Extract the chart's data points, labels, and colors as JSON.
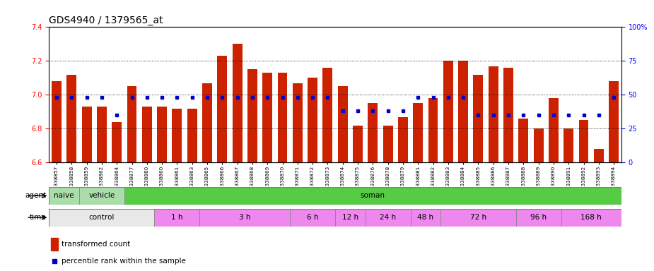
{
  "title": "GDS4940 / 1379565_at",
  "samples": [
    "GSM338857",
    "GSM338858",
    "GSM338859",
    "GSM338862",
    "GSM338864",
    "GSM338877",
    "GSM338880",
    "GSM338860",
    "GSM338861",
    "GSM338863",
    "GSM338865",
    "GSM338866",
    "GSM338867",
    "GSM338868",
    "GSM338869",
    "GSM338870",
    "GSM338871",
    "GSM338872",
    "GSM338873",
    "GSM338874",
    "GSM338875",
    "GSM338876",
    "GSM338878",
    "GSM338879",
    "GSM338881",
    "GSM338882",
    "GSM338883",
    "GSM338884",
    "GSM338885",
    "GSM338886",
    "GSM338887",
    "GSM338888",
    "GSM338889",
    "GSM338890",
    "GSM338891",
    "GSM338892",
    "GSM338893",
    "GSM338894"
  ],
  "transformed_count": [
    7.08,
    7.12,
    6.93,
    6.93,
    6.84,
    7.05,
    6.93,
    6.93,
    6.92,
    6.92,
    7.07,
    7.23,
    7.3,
    7.15,
    7.13,
    7.13,
    7.07,
    7.1,
    7.16,
    7.05,
    6.82,
    6.95,
    6.82,
    6.87,
    6.95,
    6.98,
    7.2,
    7.2,
    7.12,
    7.17,
    7.16,
    6.86,
    6.8,
    6.98,
    6.8,
    6.85,
    6.68,
    7.08
  ],
  "percentile_rank": [
    48,
    48,
    48,
    48,
    35,
    48,
    48,
    48,
    48,
    48,
    48,
    48,
    48,
    48,
    48,
    48,
    48,
    48,
    48,
    38,
    38,
    38,
    38,
    38,
    48,
    48,
    48,
    48,
    35,
    35,
    35,
    35,
    35,
    35,
    35,
    35,
    35,
    48
  ],
  "ylim_left": [
    6.6,
    7.4
  ],
  "ylim_right": [
    0,
    100
  ],
  "bar_color": "#cc2200",
  "dot_color": "#0000cc",
  "bar_bottom": 6.6,
  "agent_groups": [
    {
      "label": "naive",
      "start": 0,
      "end": 2,
      "color": "#aaddaa"
    },
    {
      "label": "vehicle",
      "start": 2,
      "end": 5,
      "color": "#aaddaa"
    },
    {
      "label": "soman",
      "start": 5,
      "end": 38,
      "color": "#55cc44"
    }
  ],
  "time_groups": [
    {
      "label": "control",
      "start": 0,
      "end": 7,
      "color": "#e8e8e8"
    },
    {
      "label": "1 h",
      "start": 7,
      "end": 10,
      "color": "#ee88ee"
    },
    {
      "label": "3 h",
      "start": 10,
      "end": 16,
      "color": "#ee88ee"
    },
    {
      "label": "6 h",
      "start": 16,
      "end": 19,
      "color": "#ee88ee"
    },
    {
      "label": "12 h",
      "start": 19,
      "end": 21,
      "color": "#ee88ee"
    },
    {
      "label": "24 h",
      "start": 21,
      "end": 24,
      "color": "#ee88ee"
    },
    {
      "label": "48 h",
      "start": 24,
      "end": 26,
      "color": "#ee88ee"
    },
    {
      "label": "72 h",
      "start": 26,
      "end": 31,
      "color": "#ee88ee"
    },
    {
      "label": "96 h",
      "start": 31,
      "end": 34,
      "color": "#ee88ee"
    },
    {
      "label": "168 h",
      "start": 34,
      "end": 38,
      "color": "#ee88ee"
    }
  ],
  "title_fontsize": 10,
  "tick_fontsize": 7,
  "sample_fontsize": 5.2
}
